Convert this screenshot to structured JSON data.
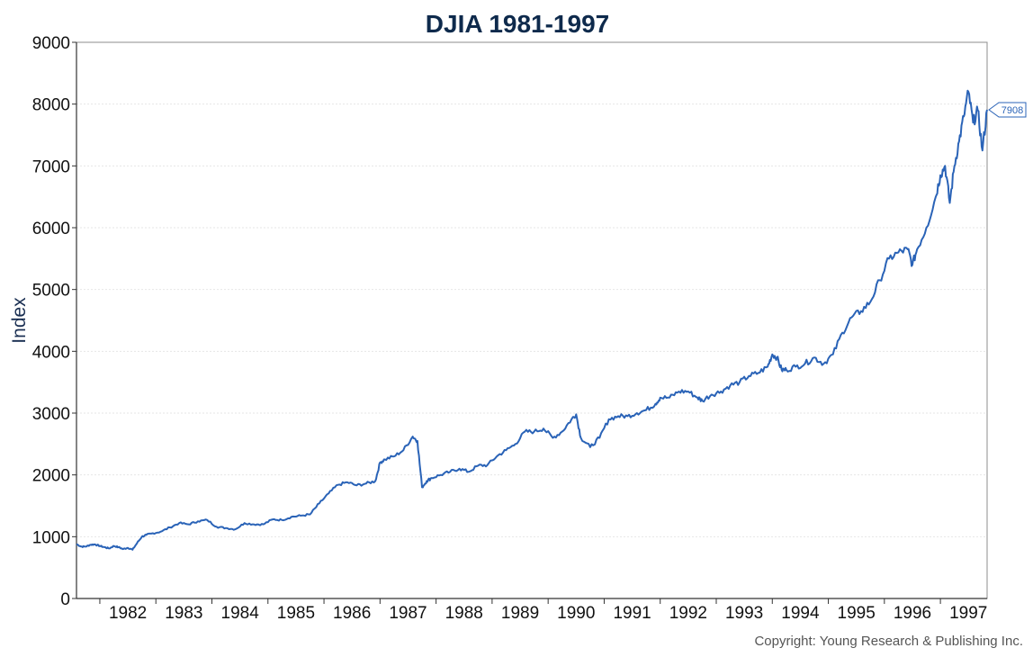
{
  "chart_data": {
    "type": "line",
    "title": "DJIA 1981-1997",
    "xlabel": "",
    "ylabel": "Index",
    "ylim": [
      0,
      9000
    ],
    "xlim": [
      "1981-08",
      "1997-11"
    ],
    "y_ticks": [
      0,
      1000,
      2000,
      3000,
      4000,
      5000,
      6000,
      7000,
      8000,
      9000
    ],
    "x_tick_labels": [
      "1982",
      "1983",
      "1984",
      "1985",
      "1986",
      "1987",
      "1988",
      "1989",
      "1990",
      "1991",
      "1992",
      "1993",
      "1994",
      "1995",
      "1996",
      "1997"
    ],
    "grid": true,
    "legend": "none",
    "line_color": "#2a63b7",
    "last_value_label": "7908",
    "series": [
      {
        "name": "",
        "x": [
          "1981-08",
          "1981-09",
          "1981-10",
          "1981-11",
          "1981-12",
          "1982-01",
          "1982-02",
          "1982-03",
          "1982-04",
          "1982-05",
          "1982-06",
          "1982-07",
          "1982-08",
          "1982-09",
          "1982-10",
          "1982-11",
          "1982-12",
          "1983-02",
          "1983-04",
          "1983-06",
          "1983-08",
          "1983-10",
          "1983-12",
          "1984-02",
          "1984-04",
          "1984-06",
          "1984-08",
          "1984-10",
          "1984-12",
          "1985-02",
          "1985-04",
          "1985-06",
          "1985-08",
          "1985-10",
          "1985-12",
          "1986-02",
          "1986-04",
          "1986-06",
          "1986-08",
          "1986-10",
          "1986-12",
          "1987-01",
          "1987-02",
          "1987-04",
          "1987-06",
          "1987-08",
          "1987-09",
          "1987-10",
          "1987-11",
          "1987-12",
          "1988-02",
          "1988-04",
          "1988-06",
          "1988-08",
          "1988-10",
          "1988-12",
          "1989-02",
          "1989-04",
          "1989-06",
          "1989-08",
          "1989-10",
          "1989-12",
          "1990-02",
          "1990-04",
          "1990-06",
          "1990-07",
          "1990-08",
          "1990-10",
          "1990-12",
          "1991-02",
          "1991-04",
          "1991-06",
          "1991-08",
          "1991-10",
          "1991-12",
          "1992-01",
          "1992-03",
          "1992-05",
          "1992-07",
          "1992-09",
          "1992-10",
          "1992-12",
          "1993-02",
          "1993-04",
          "1993-06",
          "1993-08",
          "1993-10",
          "1993-12",
          "1994-01",
          "1994-02",
          "1994-03",
          "1994-04",
          "1994-06",
          "1994-08",
          "1994-10",
          "1994-12",
          "1995-02",
          "1995-04",
          "1995-06",
          "1995-08",
          "1995-10",
          "1995-12",
          "1996-02",
          "1996-04",
          "1996-06",
          "1996-07",
          "1996-08",
          "1996-10",
          "1996-12",
          "1997-01",
          "1997-02",
          "1997-03",
          "1997-04",
          "1997-05",
          "1997-06",
          "1997-07",
          "1997-08",
          "1997-09",
          "1997-10",
          "1997-11"
        ],
        "values": [
          880,
          840,
          840,
          870,
          875,
          850,
          830,
          810,
          850,
          830,
          800,
          820,
          790,
          900,
          1000,
          1030,
          1050,
          1080,
          1150,
          1220,
          1200,
          1250,
          1270,
          1160,
          1140,
          1120,
          1220,
          1200,
          1200,
          1280,
          1270,
          1320,
          1340,
          1360,
          1540,
          1700,
          1840,
          1880,
          1830,
          1860,
          1900,
          2200,
          2250,
          2300,
          2400,
          2620,
          2550,
          1800,
          1900,
          1950,
          2000,
          2050,
          2100,
          2050,
          2150,
          2160,
          2300,
          2400,
          2500,
          2700,
          2700,
          2750,
          2600,
          2700,
          2900,
          2980,
          2600,
          2450,
          2600,
          2900,
          2950,
          2950,
          3000,
          3050,
          3150,
          3250,
          3250,
          3350,
          3350,
          3250,
          3200,
          3300,
          3350,
          3450,
          3500,
          3600,
          3650,
          3750,
          3950,
          3900,
          3700,
          3700,
          3750,
          3800,
          3900,
          3800,
          3950,
          4300,
          4550,
          4650,
          4800,
          5150,
          5500,
          5600,
          5650,
          5400,
          5650,
          6000,
          6500,
          6850,
          7000,
          6400,
          7000,
          7400,
          7800,
          8200,
          7700,
          7900,
          7250,
          7908
        ]
      }
    ]
  },
  "footer": {
    "copyright": "Copyright: Young Research & Publishing Inc."
  }
}
